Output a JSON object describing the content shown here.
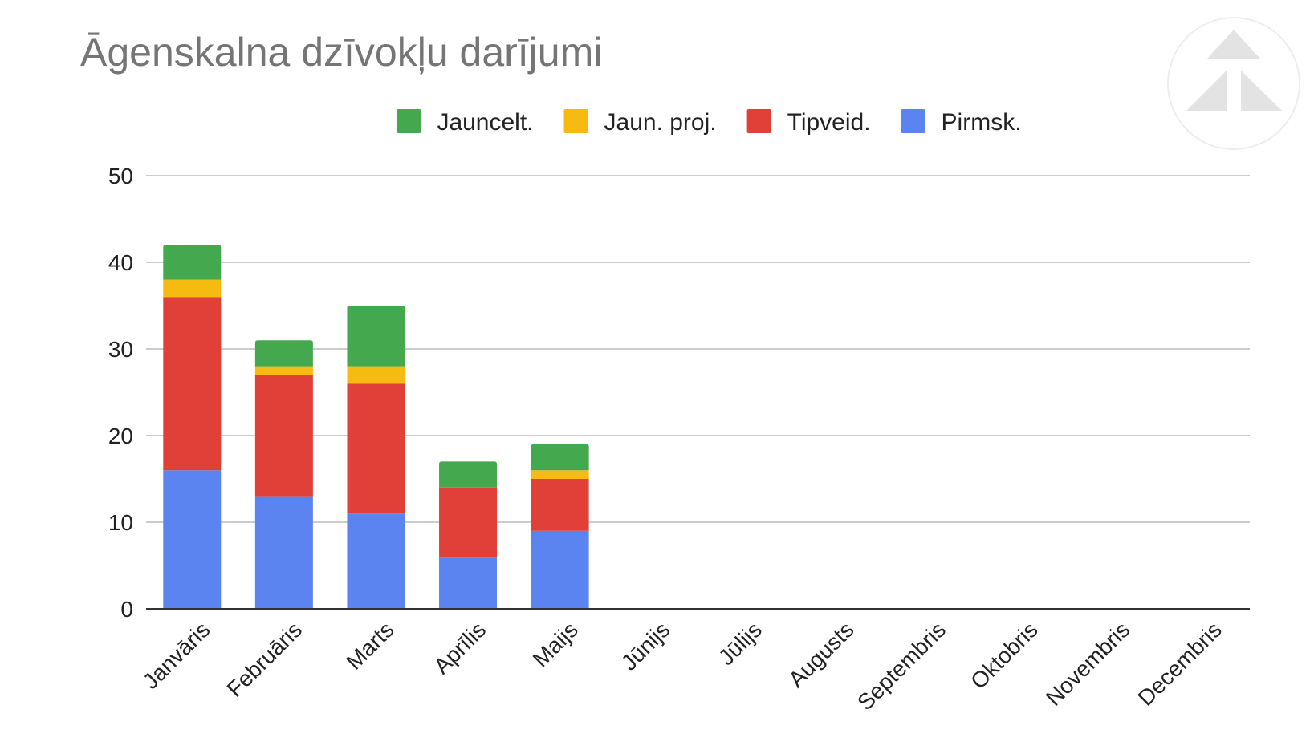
{
  "chart_data": {
    "type": "bar",
    "stacked": true,
    "title": "Āgenskalna dzīvokļu darījumi",
    "xlabel": "",
    "ylabel": "",
    "ylim": [
      0,
      50
    ],
    "yticks": [
      0,
      10,
      20,
      30,
      40,
      50
    ],
    "grid": true,
    "legend_position": "top",
    "categories": [
      "Janvāris",
      "Februāris",
      "Marts",
      "Aprīlis",
      "Maijs",
      "Jūnijs",
      "Jūlijs",
      "Augusts",
      "Septembris",
      "Oktobris",
      "Novembris",
      "Decembris"
    ],
    "series": [
      {
        "name": "Pirmsk.",
        "color": "#5b84f0",
        "values": [
          16,
          13,
          11,
          6,
          9,
          0,
          0,
          0,
          0,
          0,
          0,
          0
        ]
      },
      {
        "name": "Tipveid.",
        "color": "#e04038",
        "values": [
          20,
          14,
          15,
          8,
          6,
          0,
          0,
          0,
          0,
          0,
          0,
          0
        ]
      },
      {
        "name": "Jaun. proj.",
        "color": "#f5bb10",
        "values": [
          2,
          1,
          2,
          0,
          1,
          0,
          0,
          0,
          0,
          0,
          0,
          0
        ]
      },
      {
        "name": "Jauncelt.",
        "color": "#43a84e",
        "values": [
          4,
          3,
          7,
          3,
          3,
          0,
          0,
          0,
          0,
          0,
          0,
          0
        ]
      }
    ],
    "legend_order": [
      "Jauncelt.",
      "Jaun. proj.",
      "Tipveid.",
      "Pirmsk."
    ]
  },
  "logo": {
    "name": "triangle-logo-icon"
  }
}
